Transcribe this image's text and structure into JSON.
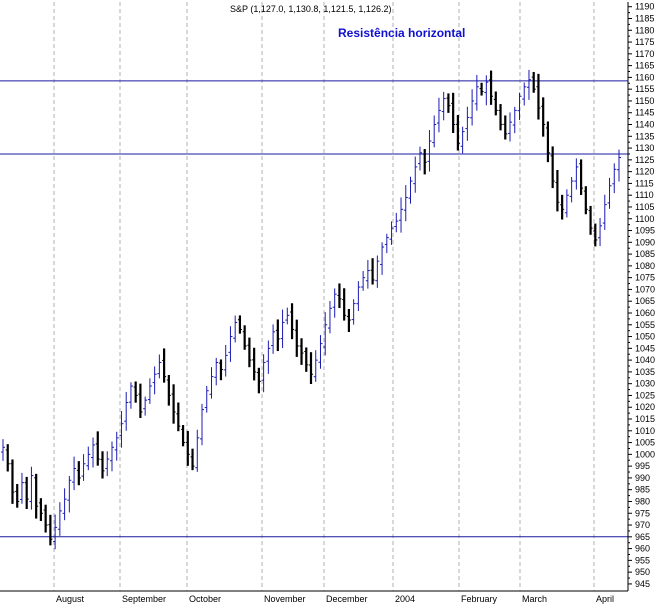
{
  "chart_data": {
    "type": "ohlc",
    "title": "S&P (1,127.0, 1,130.8, 1,121.5, 1,126.2)",
    "annotation": "Resistência horizontal",
    "ylim": [
      942,
      1192
    ],
    "y_ticks": [
      945,
      950,
      955,
      960,
      965,
      970,
      975,
      980,
      985,
      990,
      995,
      1000,
      1005,
      1010,
      1015,
      1020,
      1025,
      1030,
      1035,
      1040,
      1045,
      1050,
      1055,
      1060,
      1065,
      1070,
      1075,
      1080,
      1085,
      1090,
      1095,
      1100,
      1105,
      1110,
      1115,
      1120,
      1125,
      1130,
      1135,
      1140,
      1145,
      1150,
      1155,
      1160,
      1165,
      1170,
      1175,
      1180,
      1185,
      1190
    ],
    "grid": "vertical dashed at month starts",
    "x_labels": [
      "August",
      "September",
      "October",
      "November",
      "December",
      "2004",
      "February",
      "March",
      "April"
    ],
    "horizontal_lines": [
      {
        "value": 1158.5,
        "color": "#1a1aa0"
      },
      {
        "value": 1127.5,
        "color": "#1a1aa0"
      },
      {
        "value": 965.0,
        "color": "#1a1aa0"
      }
    ],
    "colors": {
      "up": "#1a1ab4",
      "down": "#000000",
      "grid": "#b0b0b0",
      "axis": "#000000"
    },
    "series": [
      {
        "values": [
          1003,
          996,
          984,
          980,
          988,
          981,
          991,
          978,
          975,
          970,
          964,
          969,
          976,
          981,
          989,
          994,
          990,
          996,
          1000,
          1004,
          998,
          993,
          998,
          1003,
          1007,
          1013,
          1022,
          1029,
          1025,
          1018,
          1023,
          1029,
          1034,
          1039,
          1033,
          1025,
          1018,
          1012,
          1005,
          1000,
          995,
          1007,
          1019,
          1027,
          1033,
          1039,
          1036,
          1042,
          1050,
          1056,
          1053,
          1046,
          1040,
          1035,
          1031,
          1039,
          1045,
          1052,
          1049,
          1056,
          1059,
          1053,
          1046,
          1043,
          1038,
          1034,
          1040,
          1047,
          1055,
          1062,
          1068,
          1066,
          1059,
          1057,
          1064,
          1071,
          1075,
          1078,
          1074,
          1082,
          1088,
          1092,
          1096,
          1099,
          1104,
          1109,
          1116,
          1122,
          1128,
          1124,
          1133,
          1140,
          1146,
          1151,
          1148,
          1140,
          1132,
          1137,
          1143,
          1150,
          1156,
          1154,
          1158,
          1152,
          1146,
          1140,
          1136,
          1141,
          1146,
          1152,
          1156,
          1159,
          1155,
          1147,
          1140,
          1128,
          1116,
          1107,
          1104,
          1110,
          1116,
          1122,
          1113,
          1104,
          1096,
          1091,
          1097,
          1106,
          1114,
          1121,
          1126
        ]
      }
    ]
  }
}
